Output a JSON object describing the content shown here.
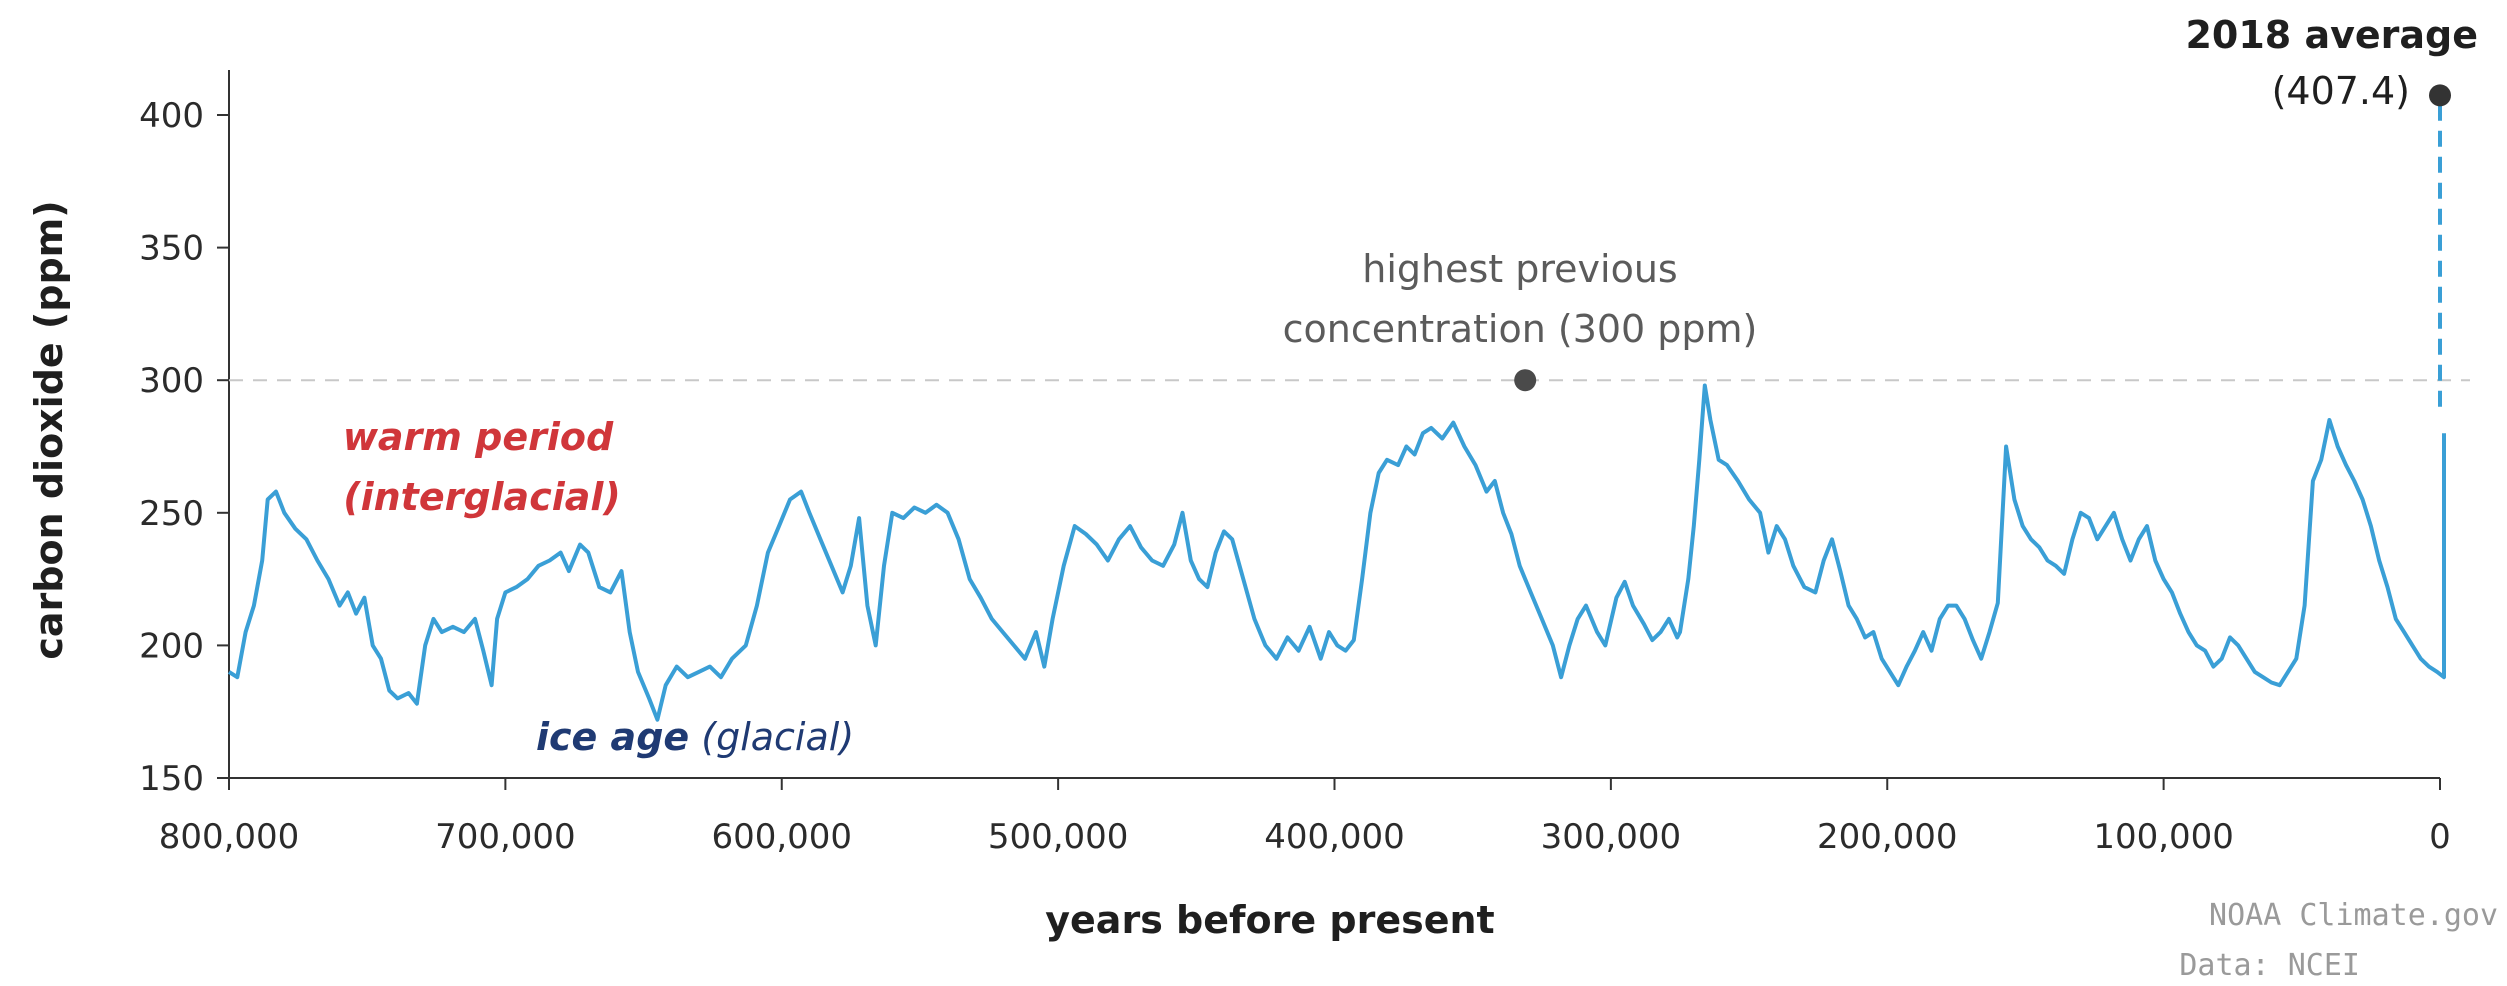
{
  "chart_data": {
    "type": "line",
    "xlabel": "years before present",
    "ylabel": "carbon dioxide (ppm)",
    "xlim": [
      800000,
      0
    ],
    "ylim": [
      150,
      415
    ],
    "x_ticks": [
      800000,
      700000,
      600000,
      500000,
      400000,
      300000,
      200000,
      100000,
      0
    ],
    "x_tick_labels": [
      "800,000",
      "700,000",
      "600,000",
      "500,000",
      "400,000",
      "300,000",
      "200,000",
      "100,000",
      "0"
    ],
    "y_ticks": [
      150,
      200,
      250,
      300,
      350,
      400
    ],
    "y_tick_labels": [
      "150",
      "200",
      "250",
      "300",
      "350",
      "400"
    ],
    "reference_line": {
      "y": 300
    },
    "series": [
      {
        "color": "#3a9fd6",
        "points": [
          [
            800000,
            190
          ],
          [
            797000,
            188
          ],
          [
            794000,
            205
          ],
          [
            791000,
            215
          ],
          [
            788000,
            232
          ],
          [
            786000,
            255
          ],
          [
            783000,
            258
          ],
          [
            780000,
            250
          ],
          [
            776000,
            244
          ],
          [
            772000,
            240
          ],
          [
            768000,
            232
          ],
          [
            764000,
            225
          ],
          [
            760000,
            215
          ],
          [
            757000,
            220
          ],
          [
            754000,
            212
          ],
          [
            751000,
            218
          ],
          [
            748000,
            200
          ],
          [
            745000,
            195
          ],
          [
            742000,
            183
          ],
          [
            739000,
            180
          ],
          [
            735000,
            182
          ],
          [
            732000,
            178
          ],
          [
            729000,
            200
          ],
          [
            726000,
            210
          ],
          [
            723000,
            205
          ],
          [
            719000,
            207
          ],
          [
            715000,
            205
          ],
          [
            711000,
            210
          ],
          [
            708000,
            198
          ],
          [
            705000,
            185
          ],
          [
            703000,
            210
          ],
          [
            700000,
            220
          ],
          [
            696000,
            222
          ],
          [
            692000,
            225
          ],
          [
            688000,
            230
          ],
          [
            684000,
            232
          ],
          [
            680000,
            235
          ],
          [
            677000,
            228
          ],
          [
            673000,
            238
          ],
          [
            670000,
            235
          ],
          [
            666000,
            222
          ],
          [
            662000,
            220
          ],
          [
            658000,
            228
          ],
          [
            655000,
            205
          ],
          [
            652000,
            190
          ],
          [
            648000,
            180
          ],
          [
            645000,
            172
          ],
          [
            642000,
            185
          ],
          [
            638000,
            192
          ],
          [
            634000,
            188
          ],
          [
            630000,
            190
          ],
          [
            626000,
            192
          ],
          [
            622000,
            188
          ],
          [
            618000,
            195
          ],
          [
            613000,
            200
          ],
          [
            609000,
            215
          ],
          [
            605000,
            235
          ],
          [
            601000,
            245
          ],
          [
            597000,
            255
          ],
          [
            593000,
            258
          ],
          [
            590000,
            250
          ],
          [
            586000,
            240
          ],
          [
            582000,
            230
          ],
          [
            578000,
            220
          ],
          [
            575000,
            230
          ],
          [
            572000,
            248
          ],
          [
            569000,
            215
          ],
          [
            566000,
            200
          ],
          [
            563000,
            230
          ],
          [
            560000,
            250
          ],
          [
            556000,
            248
          ],
          [
            552000,
            252
          ],
          [
            548000,
            250
          ],
          [
            544000,
            253
          ],
          [
            540000,
            250
          ],
          [
            536000,
            240
          ],
          [
            532000,
            225
          ],
          [
            528000,
            218
          ],
          [
            524000,
            210
          ],
          [
            520000,
            205
          ],
          [
            516000,
            200
          ],
          [
            512000,
            195
          ],
          [
            508000,
            205
          ],
          [
            505000,
            192
          ],
          [
            502000,
            210
          ],
          [
            498000,
            230
          ],
          [
            494000,
            245
          ],
          [
            490000,
            242
          ],
          [
            486000,
            238
          ],
          [
            482000,
            232
          ],
          [
            478000,
            240
          ],
          [
            474000,
            245
          ],
          [
            470000,
            237
          ],
          [
            466000,
            232
          ],
          [
            462000,
            230
          ],
          [
            458000,
            238
          ],
          [
            455000,
            250
          ],
          [
            452000,
            232
          ],
          [
            449000,
            225
          ],
          [
            446000,
            222
          ],
          [
            443000,
            235
          ],
          [
            440000,
            243
          ],
          [
            437000,
            240
          ],
          [
            433000,
            225
          ],
          [
            429000,
            210
          ],
          [
            425000,
            200
          ],
          [
            421000,
            195
          ],
          [
            417000,
            203
          ],
          [
            413000,
            198
          ],
          [
            409000,
            207
          ],
          [
            405000,
            195
          ],
          [
            402000,
            205
          ],
          [
            399000,
            200
          ],
          [
            396000,
            198
          ],
          [
            393000,
            202
          ],
          [
            390000,
            225
          ],
          [
            387000,
            250
          ],
          [
            384000,
            265
          ],
          [
            381000,
            270
          ],
          [
            377000,
            268
          ],
          [
            374000,
            275
          ],
          [
            371000,
            272
          ],
          [
            368000,
            280
          ],
          [
            365000,
            282
          ],
          [
            361000,
            278
          ],
          [
            357000,
            284
          ],
          [
            353000,
            275
          ],
          [
            349000,
            268
          ],
          [
            345000,
            258
          ],
          [
            342000,
            262
          ],
          [
            339000,
            250
          ],
          [
            336000,
            242
          ],
          [
            333000,
            230
          ],
          [
            329000,
            220
          ],
          [
            325000,
            210
          ],
          [
            321000,
            200
          ],
          [
            318000,
            188
          ],
          [
            315000,
            200
          ],
          [
            312000,
            210
          ],
          [
            309000,
            215
          ],
          [
            305000,
            205
          ],
          [
            302000,
            200
          ],
          [
            298000,
            218
          ],
          [
            295000,
            224
          ],
          [
            292000,
            215
          ],
          [
            288000,
            208
          ],
          [
            285000,
            202
          ],
          [
            282000,
            205
          ],
          [
            279000,
            210
          ],
          [
            276000,
            203
          ],
          [
            275000,
            205
          ],
          [
            272000,
            225
          ],
          [
            270000,
            245
          ],
          [
            268000,
            270
          ],
          [
            266000,
            298
          ],
          [
            264000,
            285
          ],
          [
            261000,
            270
          ],
          [
            258000,
            268
          ],
          [
            254000,
            262
          ],
          [
            250000,
            255
          ],
          [
            246000,
            250
          ],
          [
            243000,
            235
          ],
          [
            240000,
            245
          ],
          [
            237000,
            240
          ],
          [
            234000,
            230
          ],
          [
            230000,
            222
          ],
          [
            226000,
            220
          ],
          [
            223000,
            232
          ],
          [
            220000,
            240
          ],
          [
            217000,
            228
          ],
          [
            214000,
            215
          ],
          [
            211000,
            210
          ],
          [
            208000,
            203
          ],
          [
            205000,
            205
          ],
          [
            202000,
            195
          ],
          [
            199000,
            190
          ],
          [
            196000,
            185
          ],
          [
            193000,
            192
          ],
          [
            190000,
            198
          ],
          [
            187000,
            205
          ],
          [
            184000,
            198
          ],
          [
            181000,
            210
          ],
          [
            178000,
            215
          ],
          [
            175000,
            215
          ],
          [
            172000,
            210
          ],
          [
            169000,
            202
          ],
          [
            166000,
            195
          ],
          [
            163000,
            205
          ],
          [
            160000,
            216
          ],
          [
            157000,
            275
          ],
          [
            154000,
            255
          ],
          [
            151000,
            245
          ],
          [
            148000,
            240
          ],
          [
            145000,
            237
          ],
          [
            142000,
            232
          ],
          [
            139000,
            230
          ],
          [
            136000,
            227
          ],
          [
            133000,
            240
          ],
          [
            130000,
            250
          ],
          [
            127000,
            248
          ],
          [
            124000,
            240
          ],
          [
            121000,
            245
          ],
          [
            118000,
            250
          ],
          [
            115000,
            240
          ],
          [
            112000,
            232
          ],
          [
            109000,
            240
          ],
          [
            106000,
            245
          ],
          [
            103000,
            232
          ],
          [
            100000,
            225
          ],
          [
            97000,
            220
          ],
          [
            94000,
            212
          ],
          [
            91000,
            205
          ],
          [
            88000,
            200
          ],
          [
            85000,
            198
          ],
          [
            82000,
            192
          ],
          [
            79000,
            195
          ],
          [
            76000,
            203
          ],
          [
            73000,
            200
          ],
          [
            70000,
            195
          ],
          [
            67000,
            190
          ],
          [
            64000,
            188
          ],
          [
            61000,
            186
          ],
          [
            58000,
            185
          ],
          [
            55000,
            190
          ],
          [
            52000,
            195
          ],
          [
            49000,
            215
          ],
          [
            46000,
            262
          ],
          [
            43000,
            270
          ],
          [
            40000,
            285
          ],
          [
            37000,
            275
          ],
          [
            34000,
            268
          ],
          [
            31000,
            262
          ],
          [
            28000,
            255
          ],
          [
            25000,
            245
          ],
          [
            22000,
            232
          ],
          [
            19000,
            222
          ],
          [
            16000,
            210
          ],
          [
            13000,
            205
          ],
          [
            10000,
            200
          ],
          [
            7000,
            195
          ],
          [
            4000,
            192
          ],
          [
            1000,
            190
          ],
          [
            -2000,
            188
          ],
          [
            -5000,
            205
          ],
          [
            -8000,
            240
          ],
          [
            -11000,
            262
          ],
          [
            -14000,
            268
          ],
          [
            -17000,
            262
          ],
          [
            -20000,
            270
          ],
          [
            -23000,
            275
          ],
          [
            -26000,
            276
          ],
          [
            -28000,
            280
          ]
        ]
      }
    ],
    "annotations": {
      "highest_label": [
        "highest previous",
        "concentration (300 ppm)"
      ],
      "current_label": [
        "2018 average",
        "(407.4)"
      ],
      "warm_label": [
        "warm period",
        "(interglacial)"
      ],
      "ice_label_bold": "ice age",
      "ice_label_rest": " (glacial)",
      "credit": [
        "NOAA Climate.gov",
        "Data: NCEI"
      ]
    },
    "highest_point": [
      331000,
      300
    ],
    "current_point": [
      0,
      407.4
    ],
    "current_from": [
      0,
      290
    ],
    "colors": {
      "line": "#3a9fd6",
      "ref": "#c8c8c8",
      "marker": "#4a4a4a",
      "warm": "#d0363a",
      "ice": "#1f3a73"
    },
    "grid": false
  }
}
